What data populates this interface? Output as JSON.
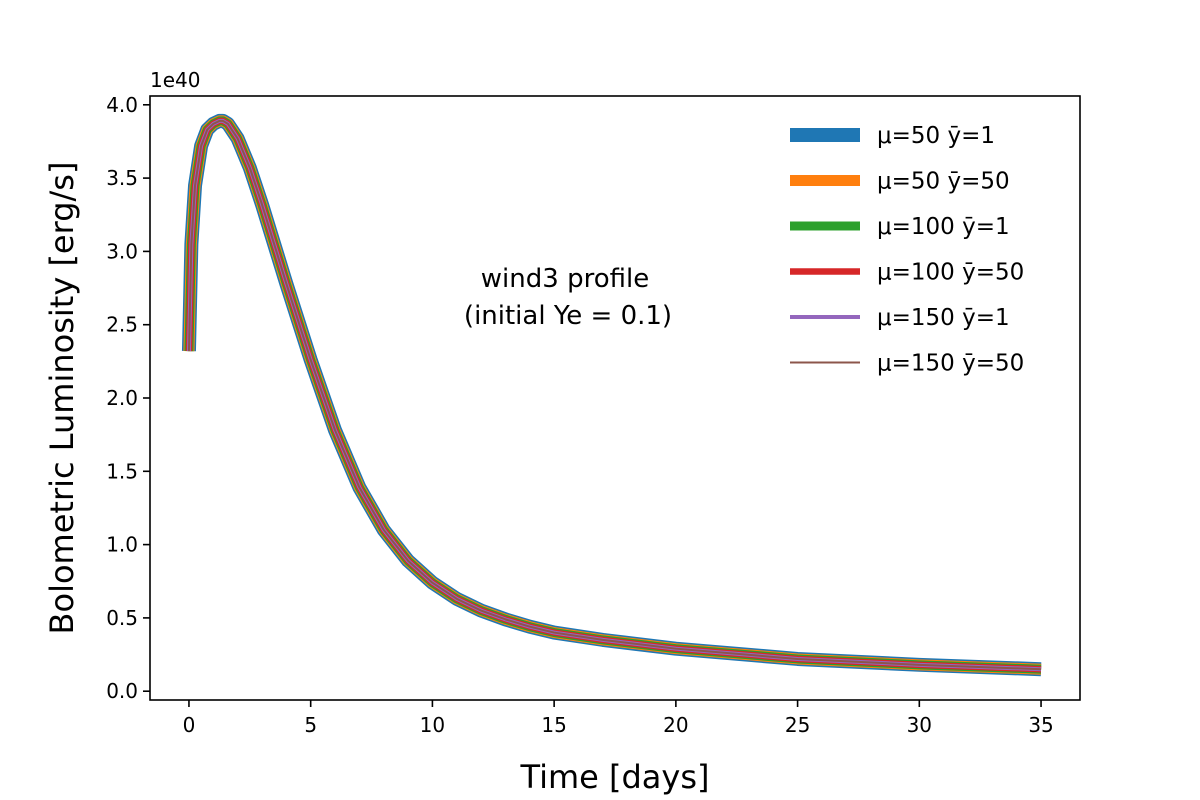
{
  "chart_data": {
    "type": "line",
    "xlabel": "Time [days]",
    "ylabel": "Bolometric Luminosity [erg/s]",
    "y_offset_label": "1e40",
    "xlim": [
      -1.6,
      36.6
    ],
    "ylim": [
      -0.06,
      4.06
    ],
    "x_ticks": [
      0,
      5,
      10,
      15,
      20,
      25,
      30,
      35
    ],
    "y_ticks": [
      0.0,
      0.5,
      1.0,
      1.5,
      2.0,
      2.5,
      3.0,
      3.5,
      4.0
    ],
    "x_tick_labels": [
      "0",
      "5",
      "10",
      "15",
      "20",
      "25",
      "30",
      "35"
    ],
    "y_tick_labels": [
      "0.0",
      "0.5",
      "1.0",
      "1.5",
      "2.0",
      "2.5",
      "3.0",
      "3.5",
      "4.0"
    ],
    "annotation": [
      "wind3 profile",
      "(initial Ye = 0.1)"
    ],
    "legend_position": "top-right",
    "x": [
      0.0,
      0.1,
      0.25,
      0.5,
      0.75,
      1.0,
      1.25,
      1.4,
      1.6,
      2.0,
      2.5,
      3.0,
      3.5,
      4.0,
      4.5,
      5.0,
      6.0,
      7.0,
      8.0,
      9.0,
      10.0,
      11.0,
      12.0,
      13.0,
      14.0,
      15.0,
      17.0,
      20.0,
      25.0,
      30.0,
      35.0
    ],
    "series": [
      {
        "name": "μ=50 ȳ=1",
        "color": "#1f77b4",
        "width": 14,
        "values": [
          2.32,
          3.05,
          3.45,
          3.72,
          3.83,
          3.87,
          3.89,
          3.89,
          3.87,
          3.77,
          3.57,
          3.32,
          3.05,
          2.78,
          2.52,
          2.26,
          1.78,
          1.39,
          1.1,
          0.89,
          0.74,
          0.63,
          0.55,
          0.49,
          0.44,
          0.4,
          0.35,
          0.29,
          0.22,
          0.18,
          0.15
        ]
      },
      {
        "name": "μ=50 ȳ=50",
        "color": "#ff7f0e",
        "width": 11,
        "values": [
          2.32,
          3.05,
          3.45,
          3.72,
          3.83,
          3.87,
          3.89,
          3.89,
          3.87,
          3.77,
          3.57,
          3.32,
          3.05,
          2.78,
          2.52,
          2.26,
          1.78,
          1.39,
          1.1,
          0.89,
          0.74,
          0.63,
          0.55,
          0.49,
          0.44,
          0.4,
          0.35,
          0.29,
          0.22,
          0.18,
          0.15
        ]
      },
      {
        "name": "μ=100 ȳ=1",
        "color": "#2ca02c",
        "width": 9,
        "values": [
          2.32,
          3.05,
          3.45,
          3.72,
          3.83,
          3.87,
          3.89,
          3.89,
          3.87,
          3.77,
          3.57,
          3.32,
          3.05,
          2.78,
          2.52,
          2.26,
          1.78,
          1.39,
          1.1,
          0.89,
          0.74,
          0.63,
          0.55,
          0.49,
          0.44,
          0.4,
          0.35,
          0.29,
          0.22,
          0.18,
          0.15
        ]
      },
      {
        "name": "μ=100 ȳ=50",
        "color": "#d62728",
        "width": 6.5,
        "values": [
          2.32,
          3.05,
          3.45,
          3.72,
          3.83,
          3.87,
          3.89,
          3.89,
          3.87,
          3.77,
          3.57,
          3.32,
          3.05,
          2.78,
          2.52,
          2.26,
          1.78,
          1.39,
          1.1,
          0.89,
          0.74,
          0.63,
          0.55,
          0.49,
          0.44,
          0.4,
          0.35,
          0.29,
          0.22,
          0.18,
          0.15
        ]
      },
      {
        "name": "μ=150 ȳ=1",
        "color": "#9467bd",
        "width": 4,
        "values": [
          2.32,
          3.05,
          3.45,
          3.72,
          3.83,
          3.87,
          3.89,
          3.89,
          3.87,
          3.77,
          3.57,
          3.32,
          3.05,
          2.78,
          2.52,
          2.26,
          1.78,
          1.39,
          1.1,
          0.89,
          0.74,
          0.63,
          0.55,
          0.49,
          0.44,
          0.4,
          0.35,
          0.29,
          0.22,
          0.18,
          0.15
        ]
      },
      {
        "name": "μ=150 ȳ=50",
        "color": "#8c564b",
        "width": 2,
        "values": [
          2.32,
          3.05,
          3.45,
          3.72,
          3.83,
          3.87,
          3.89,
          3.89,
          3.87,
          3.77,
          3.57,
          3.32,
          3.05,
          2.78,
          2.52,
          2.26,
          1.78,
          1.39,
          1.1,
          0.89,
          0.74,
          0.63,
          0.55,
          0.49,
          0.44,
          0.4,
          0.35,
          0.29,
          0.22,
          0.18,
          0.15
        ]
      }
    ]
  }
}
